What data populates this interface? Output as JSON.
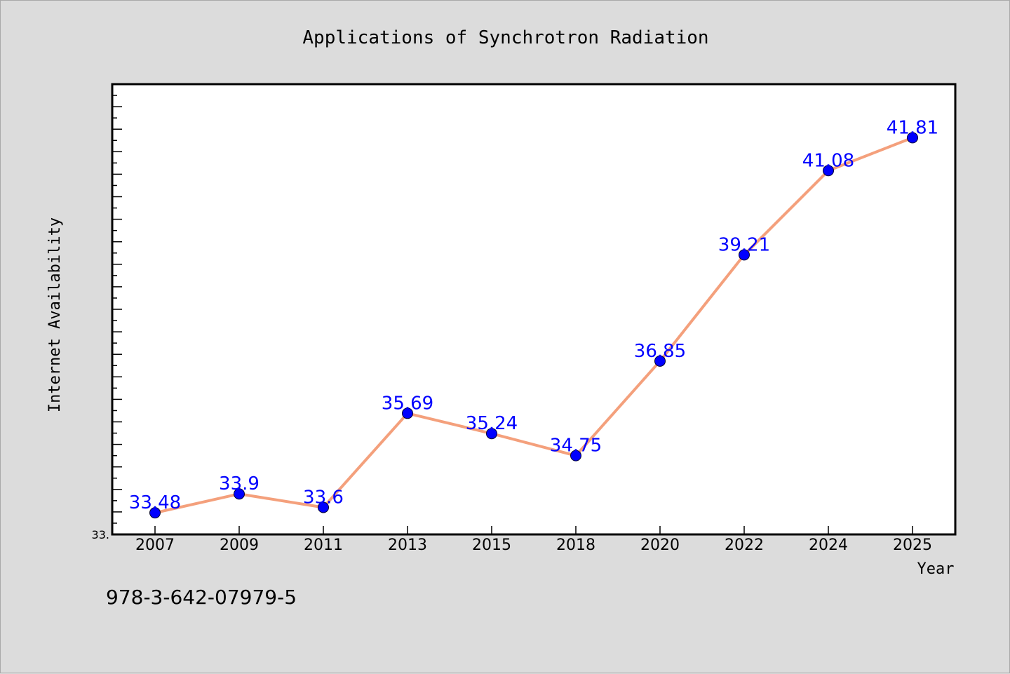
{
  "figure": {
    "background": "#dcdcdc",
    "footnote": "978-3-642-07979-5"
  },
  "chart_data": {
    "type": "line",
    "title": "Applications of Synchrotron Radiation",
    "xlabel": "Year",
    "ylabel": "Internet Availability",
    "categories": [
      "2007",
      "2009",
      "2011",
      "2013",
      "2015",
      "2018",
      "2020",
      "2022",
      "2024",
      "2025"
    ],
    "series": [
      {
        "values": [
          33.48,
          33.9,
          33.6,
          35.69,
          35.24,
          34.75,
          36.85,
          39.21,
          41.08,
          41.81
        ],
        "data_labels": [
          "33.48",
          "33.9",
          "33.6",
          "35.69",
          "35.24",
          "34.75",
          "36.85",
          "39.21",
          "41.08",
          "41.81"
        ],
        "line_color": "#f4a07c",
        "marker_color": "#0000ff"
      }
    ],
    "ylim": [
      33.0,
      43.0
    ],
    "y_tick_labels_shown": [
      "33."
    ],
    "grid": false,
    "legend": "none"
  }
}
